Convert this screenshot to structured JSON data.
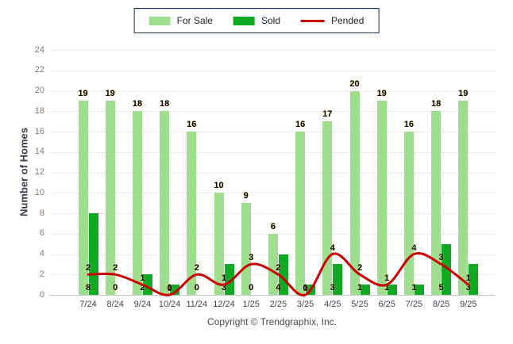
{
  "legend": {
    "items": [
      {
        "label": "For Sale",
        "swatch": "light-green"
      },
      {
        "label": "Sold",
        "swatch": "dark-green"
      },
      {
        "label": "Pended",
        "swatch": "red-line"
      }
    ]
  },
  "footer": {
    "copyright": "Copyright © Trendgraphix, Inc."
  },
  "colors": {
    "for_sale": "#9fde8e",
    "sold": "#10a923",
    "pended": "#cc0000",
    "gridline": "#ececec",
    "axis_line": "#c6c6c6"
  },
  "chart_data": {
    "type": "bar",
    "categories": [
      "7/24",
      "8/24",
      "9/24",
      "10/24",
      "11/24",
      "12/24",
      "1/25",
      "2/25",
      "3/25",
      "4/25",
      "5/25",
      "6/25",
      "7/25",
      "8/25",
      "9/25"
    ],
    "series": [
      {
        "name": "For Sale",
        "type": "bar",
        "color": "#9fde8e",
        "values": [
          19,
          19,
          18,
          18,
          16,
          10,
          9,
          6,
          16,
          17,
          20,
          19,
          16,
          18,
          19
        ]
      },
      {
        "name": "Sold",
        "type": "bar",
        "color": "#10a923",
        "values": [
          8,
          0,
          2,
          1,
          0,
          3,
          0,
          4,
          1,
          3,
          1,
          1,
          1,
          5,
          3
        ]
      },
      {
        "name": "Pended",
        "type": "line",
        "color": "#cc0000",
        "values": [
          2,
          2,
          1,
          0,
          2,
          1,
          3,
          2,
          0,
          4,
          2,
          1,
          4,
          3,
          1
        ]
      }
    ],
    "title": "",
    "xlabel": "",
    "ylabel": "Number of Homes",
    "ylim": [
      0,
      24
    ],
    "ytick_step": 2,
    "grid": true,
    "legend_position": "top",
    "value_labels_shown": true
  }
}
